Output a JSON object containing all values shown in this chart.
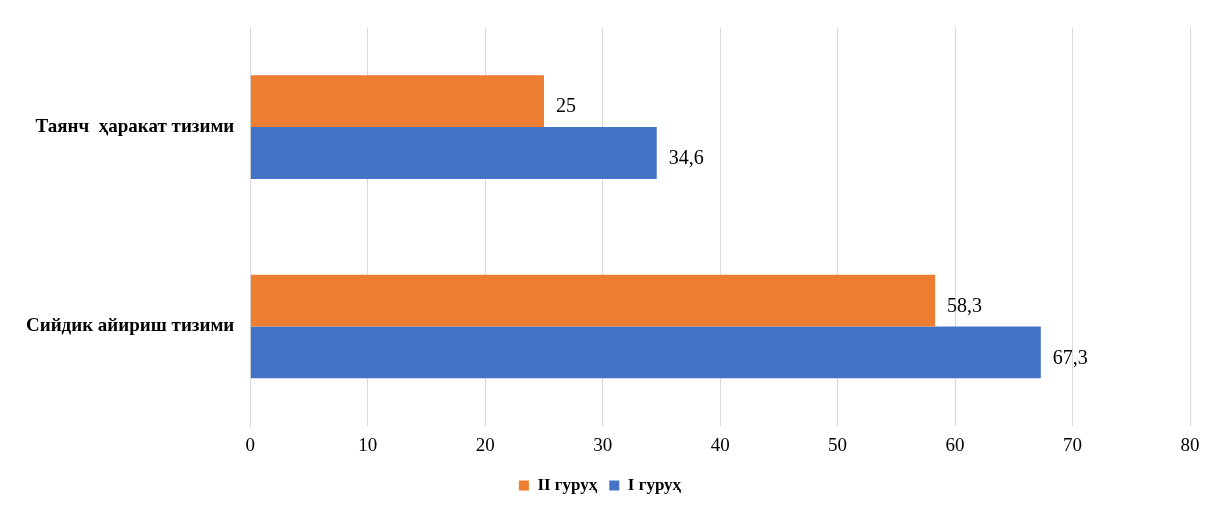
{
  "chart_data": {
    "type": "bar",
    "orientation": "horizontal",
    "categories": [
      "Таянч  ҳаракат тизими",
      "Сийдик айириш тизими"
    ],
    "series": [
      {
        "name": "II гуруҳ",
        "color": "#ed7d31",
        "values": [
          25,
          58.3
        ],
        "value_labels": [
          "25",
          "58,3"
        ]
      },
      {
        "name": "I гуруҳ",
        "color": "#4472c4",
        "values": [
          34.6,
          67.3
        ],
        "value_labels": [
          "34,6",
          "67,3"
        ]
      }
    ],
    "xlim": [
      0,
      80
    ],
    "xticks": [
      0,
      10,
      20,
      30,
      40,
      50,
      60,
      70,
      80
    ],
    "grid": "x",
    "legend": "bottom"
  }
}
